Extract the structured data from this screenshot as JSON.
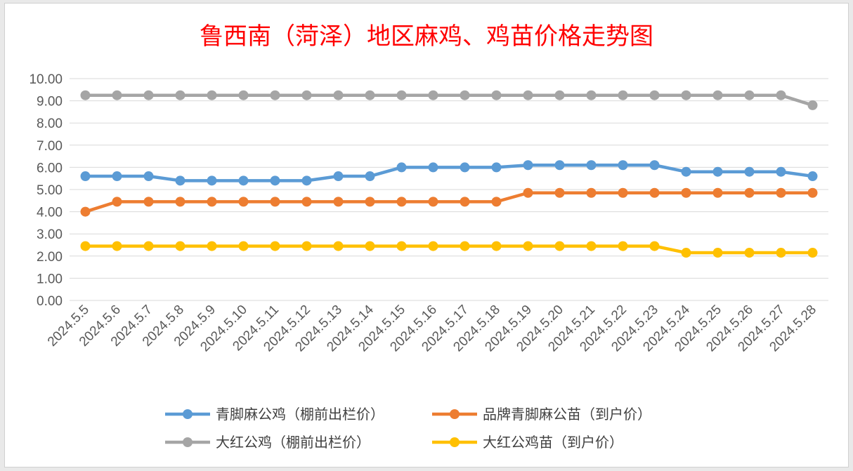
{
  "chart_data": {
    "type": "line",
    "title": "鲁西南（菏泽）地区麻鸡、鸡苗价格走势图",
    "xlabel": "",
    "ylabel": "",
    "ylim": [
      0,
      10
    ],
    "y_ticks": [
      "0.00",
      "1.00",
      "2.00",
      "3.00",
      "4.00",
      "5.00",
      "6.00",
      "7.00",
      "8.00",
      "9.00",
      "10.00"
    ],
    "grid": true,
    "legend_position": "bottom",
    "categories": [
      "2024.5.5",
      "2024.5.6",
      "2024.5.7",
      "2024.5.8",
      "2024.5.9",
      "2024.5.10",
      "2024.5.11",
      "2024.5.12",
      "2024.5.13",
      "2024.5.14",
      "2024.5.15",
      "2024.5.16",
      "2024.5.17",
      "2024.5.18",
      "2024.5.19",
      "2024.5.20",
      "2024.5.21",
      "2024.5.22",
      "2024.5.23",
      "2024.5.24",
      "2024.5.25",
      "2024.5.26",
      "2024.5.27",
      "2024.5.28"
    ],
    "series": [
      {
        "name": "青脚麻公鸡（棚前出栏价）",
        "color": "#5b9bd5",
        "values": [
          5.6,
          5.6,
          5.6,
          5.4,
          5.4,
          5.4,
          5.4,
          5.4,
          5.6,
          5.6,
          6.0,
          6.0,
          6.0,
          6.0,
          6.1,
          6.1,
          6.1,
          6.1,
          6.1,
          5.8,
          5.8,
          5.8,
          5.8,
          5.6
        ]
      },
      {
        "name": "品牌青脚麻公苗（到户价）",
        "color": "#ed7d31",
        "values": [
          4.0,
          4.45,
          4.45,
          4.45,
          4.45,
          4.45,
          4.45,
          4.45,
          4.45,
          4.45,
          4.45,
          4.45,
          4.45,
          4.45,
          4.85,
          4.85,
          4.85,
          4.85,
          4.85,
          4.85,
          4.85,
          4.85,
          4.85,
          4.85
        ]
      },
      {
        "name": "大红公鸡（棚前出栏价）",
        "color": "#a5a5a5",
        "values": [
          9.25,
          9.25,
          9.25,
          9.25,
          9.25,
          9.25,
          9.25,
          9.25,
          9.25,
          9.25,
          9.25,
          9.25,
          9.25,
          9.25,
          9.25,
          9.25,
          9.25,
          9.25,
          9.25,
          9.25,
          9.25,
          9.25,
          9.25,
          8.8
        ]
      },
      {
        "name": "大红公鸡苗（到户价）",
        "color": "#ffc000",
        "values": [
          2.45,
          2.45,
          2.45,
          2.45,
          2.45,
          2.45,
          2.45,
          2.45,
          2.45,
          2.45,
          2.45,
          2.45,
          2.45,
          2.45,
          2.45,
          2.45,
          2.45,
          2.45,
          2.45,
          2.15,
          2.15,
          2.15,
          2.15,
          2.15
        ]
      }
    ]
  }
}
